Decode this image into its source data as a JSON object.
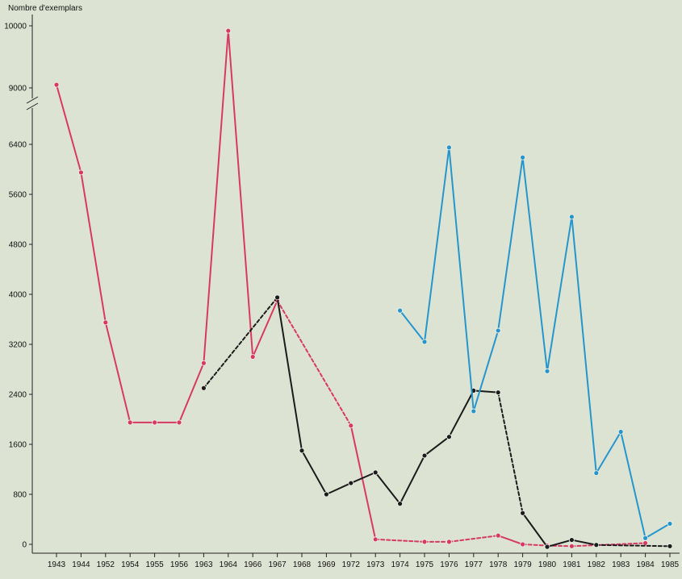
{
  "chart_data": {
    "type": "line",
    "ylabel": "Nombre d'exemplars",
    "xlabel": "",
    "categories": [
      "1943",
      "1944",
      "1952",
      "1954",
      "1955",
      "1956",
      "1963",
      "1964",
      "1966",
      "1967",
      "1968",
      "1969",
      "1972",
      "1973",
      "1974",
      "1975",
      "1976",
      "1977",
      "1978",
      "1979",
      "1980",
      "1981",
      "1982",
      "1983",
      "1984",
      "1985"
    ],
    "y_ticks": [
      0,
      800,
      1600,
      2400,
      3200,
      4000,
      4800,
      5600,
      6400,
      9000,
      10000
    ],
    "y_axis_break": {
      "from": 6400,
      "to": 9000
    },
    "ylim": [
      0,
      10000
    ],
    "grid": false,
    "colors": {
      "pink": "#d63a63",
      "black": "#1b1b1b",
      "blue": "#2596cd",
      "background": "#dde3d2"
    },
    "series": [
      {
        "color": "pink",
        "x": [
          "1943",
          "1944",
          "1952",
          "1954",
          "1955",
          "1956",
          "1963",
          "1964",
          "1966",
          "1967",
          "1972",
          "1973",
          "1975",
          "1976",
          "1978",
          "1979",
          "1980",
          "1981",
          "1984"
        ],
        "values": [
          9050,
          5950,
          3550,
          1950,
          1950,
          1950,
          2900,
          9920,
          3000,
          3900,
          1900,
          80,
          40,
          40,
          140,
          0,
          -20,
          -30,
          20
        ],
        "dashed_segments": [
          [
            1963,
            1967
          ],
          [
            1967,
            1972
          ],
          [
            1973,
            1975
          ],
          [
            1975,
            1976
          ],
          [
            1976,
            1978
          ],
          [
            1979,
            1980
          ],
          [
            1980,
            1981
          ],
          [
            1981,
            1984
          ]
        ]
      },
      {
        "color": "black",
        "x": [
          "1963",
          "1967",
          "1968",
          "1969",
          "1972",
          "1973",
          "1974",
          "1975",
          "1976",
          "1977",
          "1978",
          "1979",
          "1980",
          "1981",
          "1982",
          "1985"
        ],
        "values": [
          2500,
          3950,
          1500,
          800,
          980,
          1150,
          650,
          1420,
          1720,
          2460,
          2430,
          500,
          -40,
          70,
          -10,
          -30
        ],
        "dashed_segments": [
          [
            1963,
            1967
          ],
          [
            1978,
            1979
          ],
          [
            1982,
            1985
          ]
        ]
      },
      {
        "color": "blue",
        "x": [
          "1974",
          "1975",
          "1976",
          "1977",
          "1978",
          "1979",
          "1980",
          "1981",
          "1982",
          "1983",
          "1984",
          "1985"
        ],
        "values": [
          3740,
          3240,
          6350,
          2130,
          3420,
          6190,
          2770,
          5240,
          1140,
          1800,
          100,
          330
        ],
        "dashed_segments": []
      }
    ]
  }
}
